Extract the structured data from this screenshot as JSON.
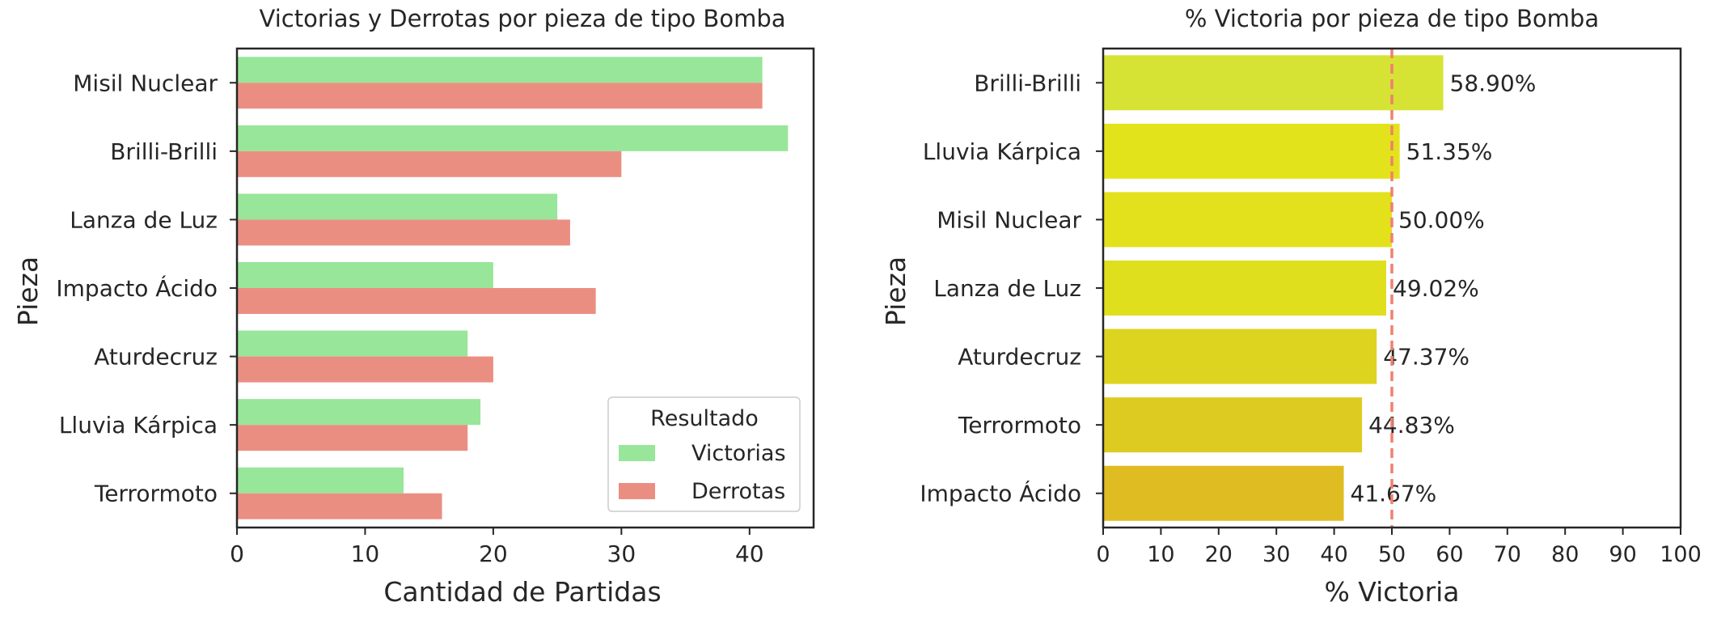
{
  "chart_data": [
    {
      "type": "bar",
      "orientation": "horizontal",
      "title": "Victorias y Derrotas por pieza de tipo Bomba",
      "xlabel": "Cantidad de Partidas",
      "ylabel": "Pieza",
      "categories": [
        "Misil Nuclear",
        "Brilli-Brilli",
        "Lanza de Luz",
        "Impacto Ácido",
        "Aturdecruz",
        "Lluvia Kárpica",
        "Terrormoto"
      ],
      "series": [
        {
          "name": "Victorias",
          "values": [
            41,
            43,
            25,
            20,
            18,
            19,
            13
          ],
          "color": "#98E699"
        },
        {
          "name": "Derrotas",
          "values": [
            41,
            30,
            26,
            28,
            20,
            18,
            16
          ],
          "color": "#EB8E82"
        }
      ],
      "xlim": [
        0,
        45
      ],
      "xticks": [
        0,
        10,
        20,
        30,
        40
      ],
      "grid": false,
      "legend": {
        "title": "Resultado",
        "placement": "bottom-right"
      }
    },
    {
      "type": "bar",
      "orientation": "horizontal",
      "title": "% Victoria por pieza de tipo Bomba",
      "xlabel": "% Victoria",
      "ylabel": "Pieza",
      "categories": [
        "Brilli-Brilli",
        "Lluvia Kárpica",
        "Misil Nuclear",
        "Lanza de Luz",
        "Aturdecruz",
        "Terrormoto",
        "Impacto Ácido"
      ],
      "values": [
        58.9,
        51.35,
        50.0,
        49.02,
        47.37,
        44.83,
        41.67
      ],
      "data_labels": [
        "58.90%",
        "51.35%",
        "50.00%",
        "49.02%",
        "47.37%",
        "44.83%",
        "41.67%"
      ],
      "colors": [
        "#D6E334",
        "#E3E31B",
        "#E2E11C",
        "#DFDF1E",
        "#DDD420",
        "#DECB21",
        "#DEBC22"
      ],
      "reference_line": {
        "x": 50,
        "style": "dashed",
        "color": "#F08070"
      },
      "xlim": [
        0,
        100
      ],
      "xticks": [
        0,
        10,
        20,
        30,
        40,
        50,
        60,
        70,
        80,
        90,
        100
      ],
      "grid": false
    }
  ]
}
